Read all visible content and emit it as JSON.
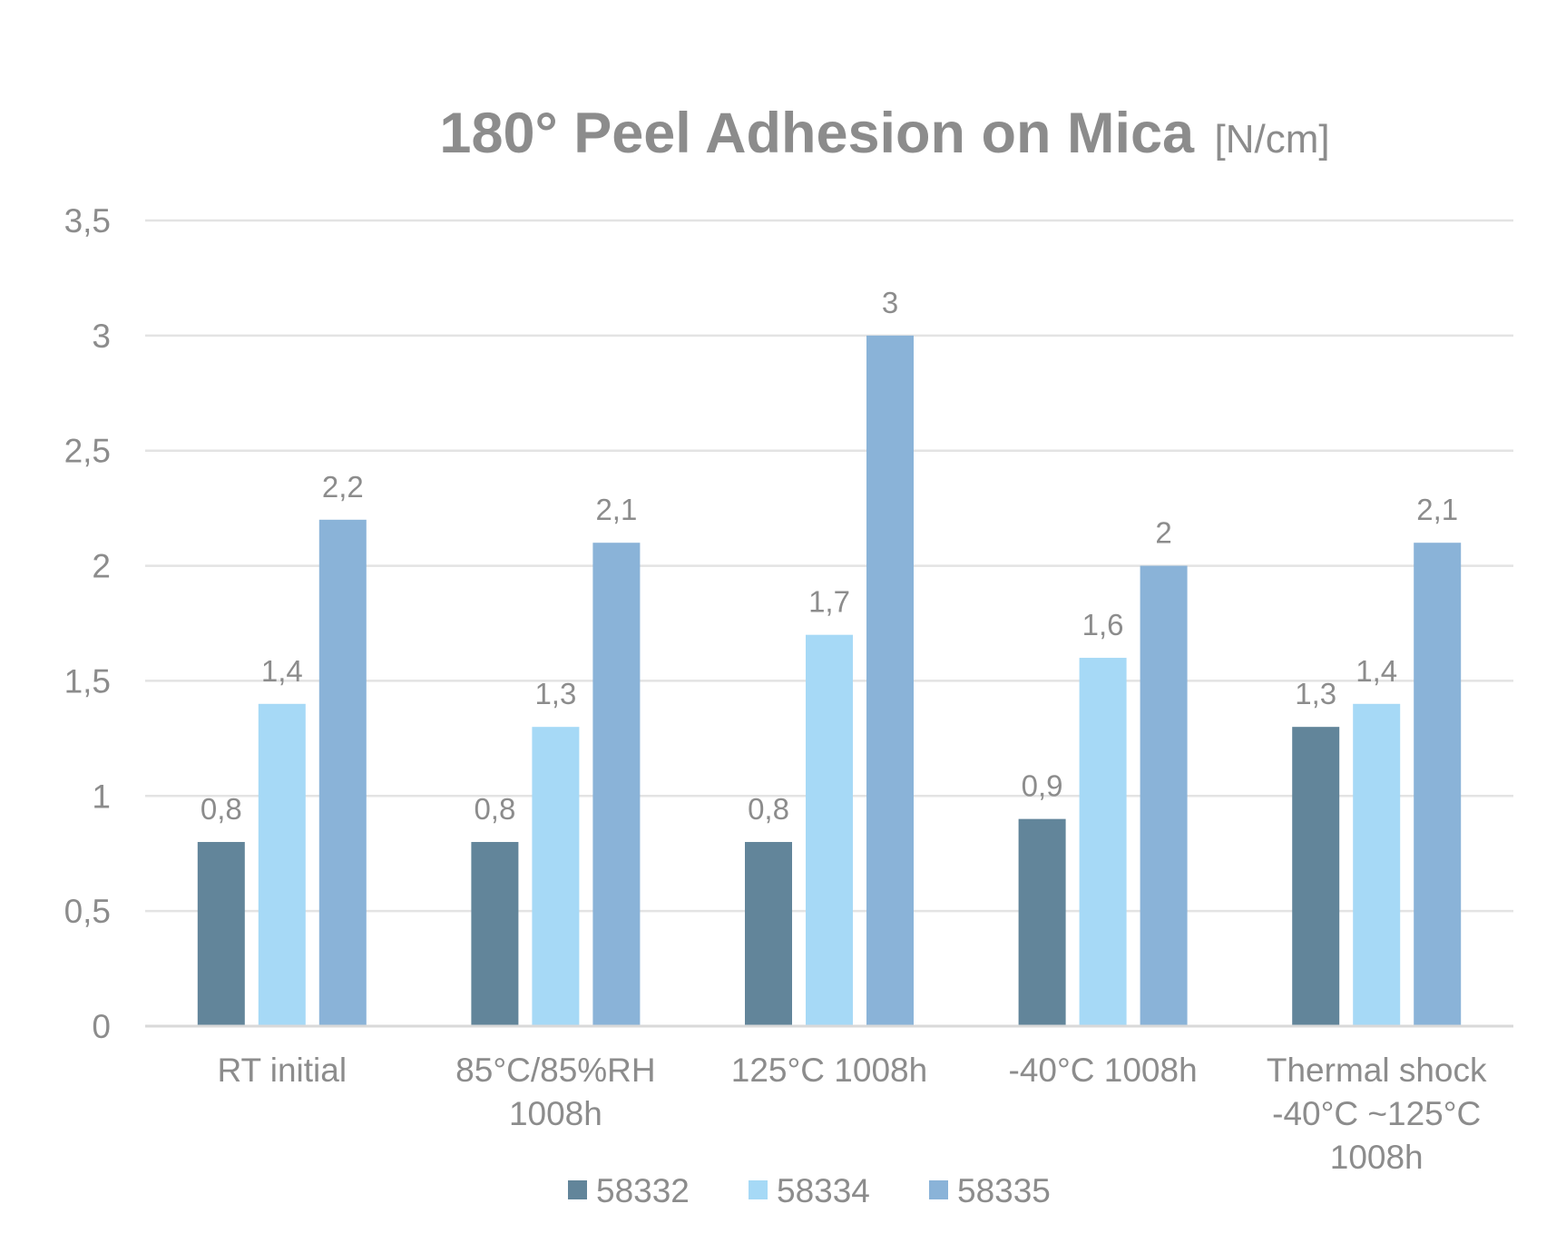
{
  "chart_data": {
    "type": "bar",
    "title": "180° Peel Adhesion on Mica",
    "title_unit": "[N/cm]",
    "xlabel": "",
    "ylabel": "",
    "ylim": [
      0,
      3.5
    ],
    "yticks": [
      {
        "value": 0,
        "label": "0"
      },
      {
        "value": 0.5,
        "label": "0,5"
      },
      {
        "value": 1,
        "label": "1"
      },
      {
        "value": 1.5,
        "label": "1,5"
      },
      {
        "value": 2,
        "label": "2"
      },
      {
        "value": 2.5,
        "label": "2,5"
      },
      {
        "value": 3,
        "label": "3"
      },
      {
        "value": 3.5,
        "label": "3,5"
      }
    ],
    "grid": true,
    "legend_position": "bottom",
    "categories": [
      [
        "RT initial"
      ],
      [
        "85°C/85%RH",
        "1008h"
      ],
      [
        "125°C 1008h"
      ],
      [
        "-40°C 1008h"
      ],
      [
        "Thermal shock",
        "-40°C ~125°C",
        "1008h"
      ]
    ],
    "series": [
      {
        "name": "58332",
        "color": "#62859a",
        "values": [
          0.8,
          0.8,
          0.8,
          0.9,
          1.3
        ],
        "labels": [
          "0,8",
          "0,8",
          "0,8",
          "0,9",
          "1,3"
        ]
      },
      {
        "name": "58334",
        "color": "#a6d9f6",
        "values": [
          1.4,
          1.3,
          1.7,
          1.6,
          1.4
        ],
        "labels": [
          "1,4",
          "1,3",
          "1,7",
          "1,6",
          "1,4"
        ]
      },
      {
        "name": "58335",
        "color": "#8ab3d8",
        "values": [
          2.2,
          2.1,
          3,
          2,
          2.1
        ],
        "labels": [
          "2,2",
          "2,1",
          "3",
          "2",
          "2,1"
        ]
      }
    ]
  }
}
